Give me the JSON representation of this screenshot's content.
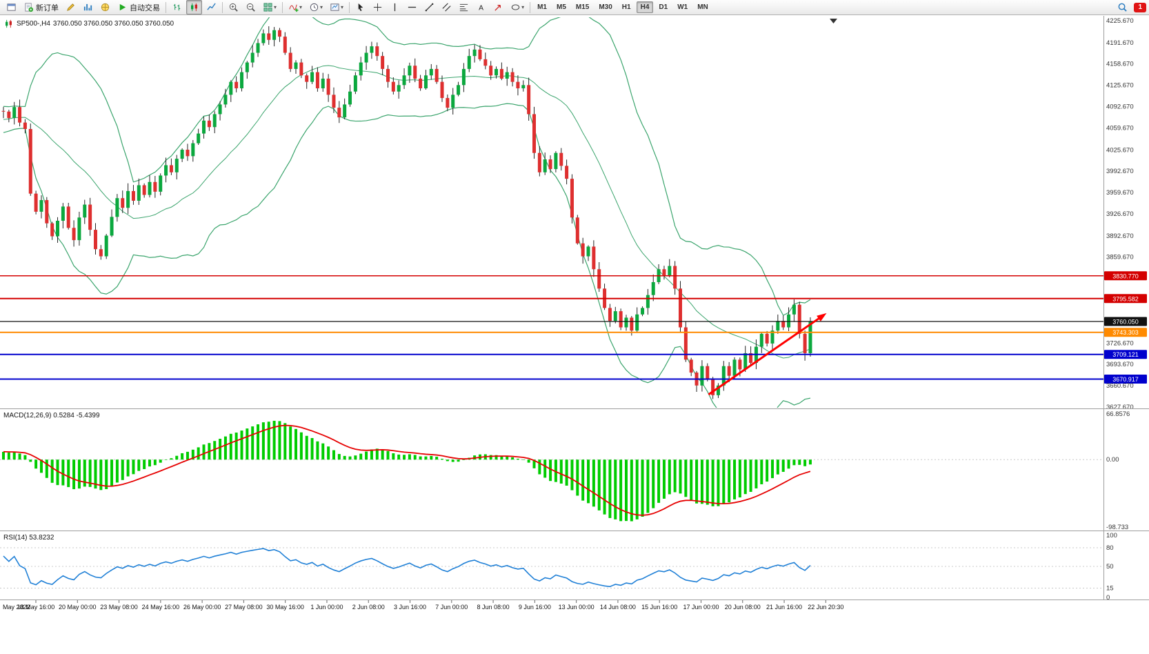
{
  "toolbar": {
    "groups": [
      {
        "name": "standard",
        "buttons": [
          {
            "name": "window-menu-button",
            "icon": "win"
          },
          {
            "name": "new-order-button",
            "icon": "doc-plus",
            "label": "新订单"
          },
          {
            "name": "meta-editor-button",
            "icon": "pencil"
          },
          {
            "name": "market-watch-button",
            "icon": "chart-bars"
          },
          {
            "name": "navigator-button",
            "icon": "globe"
          },
          {
            "name": "auto-trading-button",
            "icon": "play",
            "label": "自动交易"
          }
        ]
      },
      {
        "name": "chart-types",
        "buttons": [
          {
            "name": "bar-chart-button",
            "icon": "ohlc-bars"
          },
          {
            "name": "candlestick-chart-button",
            "icon": "candles",
            "active": true
          },
          {
            "name": "line-chart-button",
            "icon": "line-chart"
          }
        ]
      },
      {
        "name": "zoom",
        "buttons": [
          {
            "name": "zoom-in-button",
            "icon": "zoom-in"
          },
          {
            "name": "zoom-out-button",
            "icon": "zoom-out"
          },
          {
            "name": "tile-windows-button",
            "icon": "grid",
            "dropdown": true
          }
        ]
      },
      {
        "name": "insert",
        "buttons": [
          {
            "name": "indicators-button",
            "icon": "indicator-add",
            "dropdown": true
          },
          {
            "name": "periods-button",
            "icon": "clock",
            "dropdown": true
          },
          {
            "name": "templates-button",
            "icon": "template",
            "dropdown": true
          }
        ]
      },
      {
        "name": "draw",
        "buttons": [
          {
            "name": "cursor-button",
            "icon": "cursor"
          },
          {
            "name": "crosshair-button",
            "icon": "crosshair"
          },
          {
            "name": "vertical-line-button",
            "icon": "vline"
          },
          {
            "name": "horizontal-line-button",
            "icon": "hline"
          },
          {
            "name": "trendline-button",
            "icon": "trendline"
          },
          {
            "name": "channel-button",
            "icon": "channel"
          },
          {
            "name": "fibonacci-button",
            "icon": "fibonacci"
          },
          {
            "name": "text-button",
            "icon": "text"
          },
          {
            "name": "arrow-button",
            "icon": "arrows"
          },
          {
            "name": "shapes-button",
            "icon": "shapes",
            "dropdown": true
          }
        ]
      }
    ],
    "timeframes": [
      "M1",
      "M5",
      "M15",
      "M30",
      "H1",
      "H4",
      "D1",
      "W1",
      "MN"
    ],
    "active_timeframe": "H4",
    "notification_count": "1"
  },
  "chart_data": {
    "type": "candlestick",
    "symbol": "SP500-",
    "timeframe": "H4",
    "title": "SP500-,H4",
    "ohlc_text": "3760.050 3760.050 3760.050 3760.050",
    "price_axis": {
      "min": 3627.67,
      "max": 4225.67,
      "tick_labels": [
        "4225.670",
        "4191.670",
        "4158.670",
        "4125.670",
        "4092.670",
        "4059.670",
        "4025.670",
        "3992.670",
        "3959.670",
        "3926.670",
        "3892.670",
        "3859.670",
        "3726.670",
        "3693.670",
        "3660.670",
        "3627.670"
      ]
    },
    "levels": [
      {
        "label": "3830.770",
        "value": 3830.77,
        "color": "#d40000",
        "width": 1.5
      },
      {
        "label": "3795.582",
        "value": 3795.582,
        "color": "#d40000",
        "width": 2
      },
      {
        "label": "3760.050",
        "value": 3760.05,
        "color": "#111111",
        "width": 1.2
      },
      {
        "label": "3743.303",
        "value": 3743.303,
        "color": "#ff8a00",
        "width": 2
      },
      {
        "label": "3709.121",
        "value": 3709.121,
        "color": "#0000cd",
        "width": 2
      },
      {
        "label": "3670.917",
        "value": 3670.917,
        "color": "#0000cd",
        "width": 2
      }
    ],
    "closes": [
      4085,
      4075,
      4092,
      4068,
      4058,
      3958,
      3930,
      3948,
      3912,
      3892,
      3916,
      3938,
      3905,
      3886,
      3921,
      3941,
      3902,
      3872,
      3861,
      3893,
      3922,
      3951,
      3936,
      3962,
      3947,
      3971,
      3956,
      3976,
      3961,
      3986,
      4002,
      3991,
      4012,
      4026,
      4016,
      4036,
      4051,
      4071,
      4061,
      4081,
      4096,
      4111,
      4131,
      4121,
      4146,
      4161,
      4176,
      4191,
      4206,
      4196,
      4211,
      4201,
      4176,
      4151,
      4161,
      4141,
      4131,
      4146,
      4121,
      4136,
      4111,
      4091,
      4076,
      4096,
      4116,
      4141,
      4161,
      4176,
      4186,
      4171,
      4151,
      4131,
      4116,
      4126,
      4141,
      4156,
      4136,
      4121,
      4141,
      4151,
      4131,
      4106,
      4091,
      4111,
      4126,
      4151,
      4171,
      4181,
      4166,
      4156,
      4141,
      4151,
      4136,
      4146,
      4131,
      4121,
      4126,
      4081,
      4021,
      3991,
      4011,
      3996,
      4021,
      4001,
      3981,
      3921,
      3881,
      3861,
      3876,
      3841,
      3811,
      3781,
      3761,
      3776,
      3751,
      3766,
      3746,
      3771,
      3781,
      3801,
      3821,
      3841,
      3831,
      3846,
      3811,
      3751,
      3701,
      3681,
      3661,
      3691,
      3671,
      3646,
      3661,
      3691,
      3676,
      3701,
      3686,
      3711,
      3696,
      3721,
      3741,
      3726,
      3746,
      3761,
      3751,
      3771,
      3786,
      3741,
      3711,
      3760.05
    ],
    "bollinger": {
      "period": 20,
      "deviation": 2
    },
    "time_labels": [
      "May 2022",
      "18 May 16:00",
      "20 May 00:00",
      "23 May 08:00",
      "24 May 16:00",
      "26 May 00:00",
      "27 May 08:00",
      "30 May 16:00",
      "1 Jun 00:00",
      "2 Jun 08:00",
      "3 Jun 16:00",
      "7 Jun 00:00",
      "8 Jun 08:00",
      "9 Jun 16:00",
      "13 Jun 00:00",
      "14 Jun 08:00",
      "15 Jun 16:00",
      "17 Jun 00:00",
      "20 Jun 08:00",
      "21 Jun 16:00",
      "22 Jun 20:30"
    ],
    "indicators": {
      "macd": {
        "label": "MACD(12,26,9) 0.5284 -5.4399",
        "params": [
          12,
          26,
          9
        ],
        "scale_labels": [
          "66.8576",
          "0.00",
          "-98.733"
        ],
        "scale_values": [
          66.8576,
          0,
          -98.733
        ]
      },
      "rsi": {
        "label": "RSI(14) 53.8232",
        "period": 14,
        "levels": [
          80,
          50,
          15
        ],
        "scale_labels": [
          "100",
          "80",
          "50",
          "15",
          "0"
        ],
        "scale_values": [
          100,
          80,
          50,
          15,
          0
        ]
      }
    },
    "trend_arrow": {
      "from": {
        "bar": 130.2,
        "price": 3647
      },
      "to": {
        "bar": 152,
        "price": 3773
      },
      "color": "#ff0000"
    },
    "colors": {
      "up": "#0ba83e",
      "down": "#de2f2f",
      "wick": "#222222",
      "bollinger": "#3aa46c",
      "macd_hist": "#00cc00",
      "macd_signal": "#e60000",
      "rsi_line": "#1e7fd6",
      "level_dotted": "#c8c8c8",
      "separator": "#9e9e9e",
      "axis_text": "#111111",
      "badge_text": "#ffffff"
    }
  }
}
